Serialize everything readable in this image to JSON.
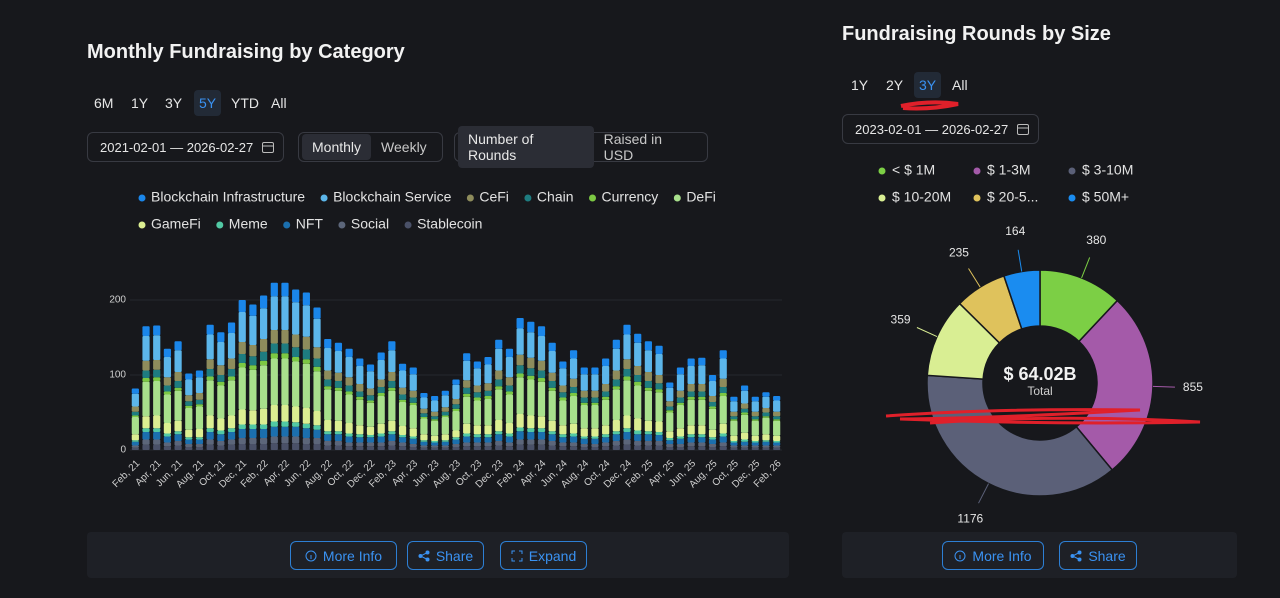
{
  "chart_data": [
    {
      "type": "bar",
      "stacked": true,
      "title": "Monthly Fundraising by Category",
      "categories": [
        "Feb, 21",
        null,
        "Apr, 21",
        null,
        "Jun, 21",
        null,
        "Aug, 21",
        null,
        "Oct, 21",
        null,
        "Dec, 21",
        null,
        "Feb, 22",
        null,
        "Apr, 22",
        null,
        "Jun, 22",
        null,
        "Aug, 22",
        null,
        "Oct, 22",
        null,
        "Dec, 22",
        null,
        "Feb, 23",
        null,
        "Apr, 23",
        null,
        "Jun, 23",
        null,
        "Aug, 23",
        null,
        "Oct, 23",
        null,
        "Dec, 23",
        null,
        "Feb, 24",
        null,
        "Apr, 24",
        null,
        "Jun, 24",
        null,
        "Aug, 24",
        null,
        "Oct, 24",
        null,
        "Dec, 24",
        null,
        "Feb, 25",
        null,
        "Apr, 25",
        null,
        "Jun, 25",
        null,
        "Aug, 25",
        null,
        "Oct, 25",
        null,
        "Dec, 25",
        null,
        "Feb, 26"
      ],
      "ylim": [
        0,
        240
      ],
      "yticks": [
        0,
        100,
        200
      ],
      "grid": true,
      "series": [
        {
          "name": "Blockchain Infrastructure",
          "color": "#1a86ea",
          "values": [
            7,
            13,
            13,
            11,
            12,
            8,
            9,
            13,
            13,
            14,
            16,
            15,
            17,
            18,
            18,
            17,
            17,
            15,
            12,
            11,
            11,
            10,
            9,
            10,
            12,
            9,
            9,
            6,
            6,
            6,
            7,
            10,
            9,
            10,
            12,
            11,
            14,
            14,
            13,
            11,
            9,
            11,
            9,
            9,
            10,
            12,
            13,
            12,
            12,
            11,
            7,
            9,
            10,
            10,
            8,
            11,
            6,
            7,
            6,
            6,
            6
          ]
        },
        {
          "name": "Blockchain Service",
          "color": "#5cb6ea",
          "values": [
            17,
            33,
            33,
            27,
            29,
            21,
            21,
            33,
            31,
            34,
            40,
            39,
            41,
            45,
            45,
            43,
            42,
            38,
            30,
            29,
            27,
            24,
            23,
            26,
            29,
            23,
            22,
            15,
            15,
            16,
            19,
            26,
            23,
            25,
            29,
            27,
            35,
            34,
            33,
            29,
            23,
            27,
            22,
            22,
            24,
            29,
            33,
            31,
            29,
            28,
            18,
            22,
            24,
            25,
            20,
            27,
            14,
            17,
            14,
            15,
            15
          ]
        },
        {
          "name": "CeFi",
          "color": "#8e8c5c",
          "values": [
            7,
            13,
            13,
            11,
            12,
            8,
            9,
            13,
            13,
            14,
            16,
            15,
            17,
            18,
            18,
            17,
            17,
            15,
            12,
            11,
            11,
            10,
            9,
            10,
            12,
            9,
            9,
            6,
            6,
            6,
            7,
            10,
            9,
            10,
            12,
            11,
            14,
            14,
            13,
            11,
            9,
            11,
            9,
            9,
            10,
            12,
            13,
            12,
            12,
            11,
            7,
            9,
            10,
            10,
            8,
            11,
            6,
            7,
            6,
            6,
            6
          ]
        },
        {
          "name": "Chain",
          "color": "#1e7c80",
          "values": [
            5,
            10,
            10,
            8,
            9,
            6,
            6,
            10,
            9,
            10,
            12,
            12,
            12,
            13,
            13,
            13,
            13,
            11,
            9,
            9,
            8,
            7,
            7,
            8,
            9,
            7,
            7,
            5,
            4,
            5,
            6,
            8,
            7,
            7,
            9,
            8,
            11,
            10,
            10,
            9,
            7,
            8,
            7,
            7,
            7,
            9,
            10,
            9,
            9,
            8,
            5,
            7,
            7,
            7,
            6,
            8,
            4,
            5,
            4,
            5,
            4
          ]
        },
        {
          "name": "Currency",
          "color": "#7cc843",
          "values": [
            2,
            5,
            5,
            4,
            4,
            3,
            3,
            5,
            5,
            5,
            6,
            6,
            6,
            7,
            7,
            6,
            6,
            6,
            4,
            4,
            4,
            4,
            3,
            4,
            4,
            3,
            3,
            2,
            2,
            2,
            3,
            4,
            4,
            4,
            4,
            4,
            5,
            5,
            5,
            4,
            4,
            4,
            3,
            3,
            4,
            4,
            5,
            5,
            4,
            4,
            3,
            3,
            4,
            4,
            3,
            4,
            2,
            3,
            2,
            2,
            2
          ]
        },
        {
          "name": "DeFi",
          "color": "#a8e08c",
          "values": [
            23,
            46,
            46,
            38,
            40,
            29,
            30,
            47,
            44,
            47,
            56,
            54,
            58,
            62,
            62,
            60,
            59,
            53,
            41,
            40,
            38,
            34,
            32,
            37,
            40,
            32,
            31,
            21,
            20,
            23,
            26,
            36,
            33,
            35,
            41,
            38,
            49,
            48,
            46,
            40,
            33,
            37,
            31,
            31,
            34,
            41,
            47,
            44,
            40,
            39,
            25,
            31,
            34,
            34,
            28,
            37,
            20,
            24,
            20,
            22,
            20
          ]
        },
        {
          "name": "GameFi",
          "color": "#dcef92",
          "values": [
            8,
            16,
            17,
            14,
            14,
            10,
            11,
            17,
            16,
            17,
            20,
            19,
            21,
            22,
            22,
            21,
            21,
            19,
            15,
            14,
            14,
            12,
            11,
            13,
            14,
            12,
            11,
            8,
            7,
            8,
            9,
            13,
            12,
            12,
            15,
            14,
            18,
            17,
            16,
            14,
            12,
            13,
            11,
            11,
            12,
            15,
            17,
            16,
            14,
            14,
            9,
            11,
            12,
            12,
            10,
            13,
            7,
            9,
            7,
            8,
            7
          ]
        },
        {
          "name": "Meme",
          "color": "#52c9a4",
          "values": [
            2,
            5,
            5,
            4,
            4,
            3,
            3,
            5,
            5,
            5,
            6,
            6,
            6,
            7,
            7,
            6,
            6,
            6,
            4,
            4,
            4,
            4,
            3,
            4,
            4,
            3,
            3,
            2,
            2,
            2,
            3,
            4,
            4,
            4,
            4,
            4,
            5,
            5,
            5,
            4,
            4,
            4,
            3,
            3,
            4,
            4,
            5,
            5,
            4,
            4,
            3,
            3,
            4,
            4,
            3,
            4,
            2,
            3,
            2,
            2,
            2
          ]
        },
        {
          "name": "NFT",
          "color": "#1b6fae",
          "values": [
            5,
            10,
            10,
            8,
            9,
            6,
            6,
            10,
            9,
            10,
            12,
            12,
            12,
            13,
            13,
            13,
            13,
            11,
            9,
            9,
            8,
            7,
            7,
            8,
            9,
            7,
            7,
            5,
            4,
            5,
            6,
            8,
            7,
            7,
            9,
            8,
            11,
            10,
            10,
            9,
            7,
            8,
            7,
            7,
            7,
            9,
            10,
            9,
            9,
            8,
            5,
            7,
            7,
            7,
            6,
            8,
            4,
            5,
            4,
            5,
            4
          ]
        },
        {
          "name": "Social",
          "color": "#5c667a",
          "values": [
            3,
            7,
            7,
            5,
            6,
            4,
            4,
            7,
            6,
            7,
            8,
            8,
            8,
            9,
            9,
            9,
            8,
            8,
            6,
            6,
            5,
            5,
            5,
            5,
            6,
            5,
            4,
            3,
            3,
            3,
            4,
            5,
            5,
            5,
            6,
            5,
            7,
            7,
            7,
            6,
            5,
            5,
            4,
            4,
            5,
            6,
            7,
            6,
            6,
            6,
            4,
            4,
            5,
            5,
            4,
            5,
            3,
            3,
            3,
            3,
            3
          ]
        },
        {
          "name": "Stablecoin",
          "color": "#4a5168",
          "values": [
            3,
            7,
            7,
            5,
            6,
            4,
            4,
            7,
            6,
            7,
            8,
            8,
            8,
            9,
            9,
            9,
            8,
            8,
            6,
            6,
            5,
            5,
            5,
            5,
            6,
            5,
            4,
            3,
            3,
            3,
            4,
            5,
            5,
            5,
            6,
            5,
            7,
            7,
            7,
            6,
            5,
            5,
            4,
            4,
            5,
            6,
            7,
            6,
            6,
            6,
            4,
            4,
            5,
            5,
            4,
            5,
            3,
            3,
            3,
            3,
            3
          ]
        }
      ]
    },
    {
      "type": "donut",
      "title": "Fundraising Rounds by Size",
      "categories": [
        "< $ 1M",
        "$ 1-3M",
        "$ 3-10M",
        "$ 10-20M",
        "$ 20-5...",
        "$ 50M+"
      ],
      "values": [
        380,
        855,
        1176,
        359,
        235,
        164
      ],
      "colors": [
        "#7ccf45",
        "#a45aa9",
        "#5b6078",
        "#d9ee93",
        "#dfc25c",
        "#1a8cf0"
      ],
      "center_text": "$ 64.02B",
      "center_label": "Total"
    }
  ],
  "monthly_panel": {
    "ranges": [
      "6M",
      "1Y",
      "3Y",
      "5Y",
      "YTD",
      "All"
    ],
    "date_range": "2021-02-01 — 2026-02-27",
    "interval": [
      "Monthly",
      "Weekly"
    ],
    "metric": [
      "Number of Rounds",
      "Raised in USD"
    ],
    "buttons": [
      "More Info",
      "Share",
      "Expand"
    ]
  },
  "size_panel": {
    "ranges": [
      "1Y",
      "2Y",
      "3Y",
      "All"
    ],
    "date_range": "2023-02-01 — 2026-02-27",
    "buttons": [
      "More Info",
      "Share"
    ]
  }
}
